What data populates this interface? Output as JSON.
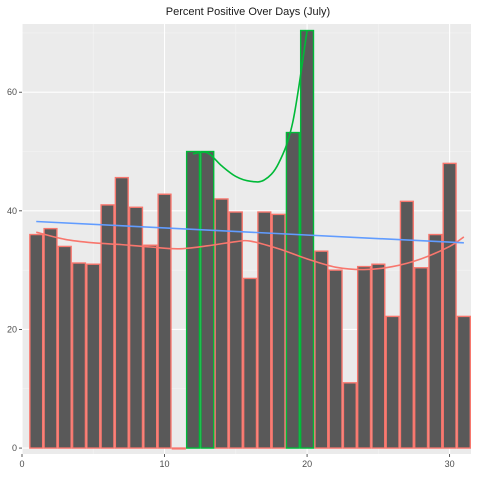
{
  "chart_data": {
    "type": "bar",
    "title": "Percent Positive Over Days (July)",
    "xlabel": "",
    "ylabel": "",
    "xlim": [
      0,
      31.5
    ],
    "ylim": [
      -1,
      71.5
    ],
    "x_ticks": [
      0,
      10,
      20,
      30
    ],
    "y_ticks": [
      0,
      20,
      40,
      60
    ],
    "grid": true,
    "legend": "none",
    "bar_fill": "#595959",
    "panel_background": "#ebebeb",
    "series": [
      {
        "group": "red",
        "outline_color": "#f8766d",
        "values": [
          {
            "x": 1,
            "y": 36.0
          },
          {
            "x": 2,
            "y": 37.0
          },
          {
            "x": 3,
            "y": 34.0
          },
          {
            "x": 4,
            "y": 31.2
          },
          {
            "x": 5,
            "y": 31.0
          },
          {
            "x": 6,
            "y": 41.0
          },
          {
            "x": 7,
            "y": 45.6
          },
          {
            "x": 8,
            "y": 40.6
          },
          {
            "x": 9,
            "y": 34.2
          },
          {
            "x": 10,
            "y": 42.8
          },
          {
            "x": 11,
            "y": 0.0
          },
          {
            "x": 14,
            "y": 42.0
          },
          {
            "x": 15,
            "y": 39.8
          },
          {
            "x": 16,
            "y": 28.6
          },
          {
            "x": 17,
            "y": 39.8
          },
          {
            "x": 18,
            "y": 39.4
          },
          {
            "x": 21,
            "y": 33.2
          },
          {
            "x": 22,
            "y": 30.0
          },
          {
            "x": 23,
            "y": 11.0
          },
          {
            "x": 24,
            "y": 30.6
          },
          {
            "x": 25,
            "y": 31.0
          },
          {
            "x": 26,
            "y": 22.2
          },
          {
            "x": 27,
            "y": 41.6
          },
          {
            "x": 28,
            "y": 30.4
          },
          {
            "x": 29,
            "y": 36.0
          },
          {
            "x": 30,
            "y": 48.0
          },
          {
            "x": 31,
            "y": 22.2
          }
        ]
      },
      {
        "group": "green",
        "outline_color": "#00ba38",
        "values": [
          {
            "x": 12,
            "y": 50.0
          },
          {
            "x": 13,
            "y": 50.0
          },
          {
            "x": 19,
            "y": 53.2
          },
          {
            "x": 20,
            "y": 70.4
          }
        ]
      }
    ],
    "trend_lines": [
      {
        "group": "red",
        "color": "#f8766d",
        "points": [
          {
            "x": 1,
            "y": 36.4
          },
          {
            "x": 3,
            "y": 35.2
          },
          {
            "x": 5,
            "y": 34.6
          },
          {
            "x": 7,
            "y": 34.3
          },
          {
            "x": 9,
            "y": 33.9
          },
          {
            "x": 11,
            "y": 33.6
          },
          {
            "x": 13,
            "y": 34.1
          },
          {
            "x": 15,
            "y": 34.8
          },
          {
            "x": 16,
            "y": 34.9
          },
          {
            "x": 18,
            "y": 33.6
          },
          {
            "x": 20,
            "y": 31.9
          },
          {
            "x": 22,
            "y": 30.5
          },
          {
            "x": 24,
            "y": 30.1
          },
          {
            "x": 26,
            "y": 30.6
          },
          {
            "x": 28,
            "y": 31.9
          },
          {
            "x": 30,
            "y": 34.0
          },
          {
            "x": 31,
            "y": 35.6
          }
        ]
      },
      {
        "group": "green",
        "color": "#00ba38",
        "points": [
          {
            "x": 12,
            "y": 49.6
          },
          {
            "x": 13,
            "y": 49.8
          },
          {
            "x": 14,
            "y": 47.6
          },
          {
            "x": 15,
            "y": 45.8
          },
          {
            "x": 16,
            "y": 45.0
          },
          {
            "x": 17,
            "y": 45.2
          },
          {
            "x": 18,
            "y": 48.0
          },
          {
            "x": 19,
            "y": 55.0
          },
          {
            "x": 20,
            "y": 70.4
          }
        ]
      },
      {
        "group": "overall",
        "color": "#619cff",
        "points": [
          {
            "x": 1,
            "y": 38.2
          },
          {
            "x": 31,
            "y": 34.6
          }
        ]
      }
    ]
  }
}
